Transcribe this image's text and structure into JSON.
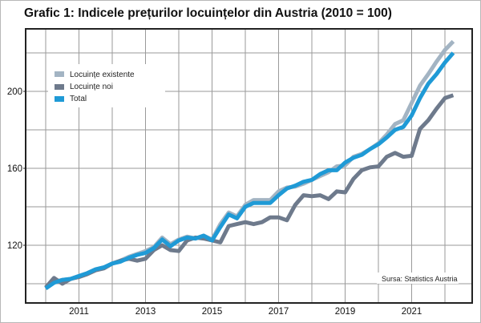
{
  "chart_data": {
    "type": "line",
    "title": "Grafic 1: Indicele prețurilor locuințelor din Austria (2010 = 100)",
    "xlabel": "",
    "ylabel": "",
    "xlim": [
      2009.7,
      2022.8
    ],
    "ylim": [
      90,
      232.5
    ],
    "grid": true,
    "x_ticks": [
      2010,
      2011,
      2012,
      2013,
      2014,
      2015,
      2016,
      2017,
      2018,
      2019,
      2020,
      2021,
      2022
    ],
    "x_tick_labels": [
      "2011",
      "2013",
      "2015",
      "2017",
      "2019",
      "2021"
    ],
    "x_tick_label_values": [
      2011,
      2013,
      2015,
      2017,
      2019,
      2021
    ],
    "y_ticks": [
      100,
      120,
      140,
      160,
      180,
      200,
      220
    ],
    "y_tick_labels": [
      "120",
      "160",
      "200"
    ],
    "y_tick_label_values": [
      120,
      160,
      200
    ],
    "legend_position": "top-left",
    "source": "Sursa: Statistics Austria",
    "x": [
      2010.0,
      2010.25,
      2010.5,
      2010.75,
      2011.0,
      2011.25,
      2011.5,
      2011.75,
      2012.0,
      2012.25,
      2012.5,
      2012.75,
      2013.0,
      2013.25,
      2013.5,
      2013.75,
      2014.0,
      2014.25,
      2014.5,
      2014.75,
      2015.0,
      2015.25,
      2015.5,
      2015.75,
      2016.0,
      2016.25,
      2016.5,
      2016.75,
      2017.0,
      2017.25,
      2017.5,
      2017.75,
      2018.0,
      2018.25,
      2018.5,
      2018.75,
      2019.0,
      2019.25,
      2019.5,
      2019.75,
      2020.0,
      2020.25,
      2020.5,
      2020.75,
      2021.0,
      2021.25,
      2021.5,
      2021.75,
      2022.0,
      2022.25
    ],
    "series": [
      {
        "name": "Locuințe existente",
        "color": "#a3b4c3",
        "values": [
          98,
          101,
          102,
          102.5,
          104,
          105.5,
          107.5,
          108.5,
          110.5,
          112,
          114,
          115.5,
          117,
          119,
          124,
          120.5,
          123,
          124.5,
          123.5,
          125,
          123,
          131,
          137,
          135,
          141,
          143.5,
          143.5,
          143.5,
          148,
          150,
          150.5,
          152,
          154,
          156,
          158,
          161,
          161.5,
          166,
          167.5,
          170,
          173,
          177.5,
          183,
          185,
          194,
          203,
          209,
          215.5,
          221.5,
          226
        ]
      },
      {
        "name": "Locuințe noi",
        "color": "#6e7a8c",
        "values": [
          98,
          103,
          100,
          102.5,
          103.5,
          105,
          107,
          108,
          110.5,
          112,
          113,
          112,
          113,
          117.5,
          120,
          117.5,
          117,
          122.5,
          124,
          123.5,
          122.5,
          121.5,
          130,
          131,
          132,
          131,
          132,
          134.5,
          134.5,
          133,
          141,
          146,
          145.5,
          146,
          144,
          148,
          147.5,
          154.5,
          159,
          160.5,
          161,
          166,
          168,
          166,
          166.5,
          180.5,
          185,
          191,
          196.5,
          198
        ]
      },
      {
        "name": "Total",
        "color": "#1f9ad6",
        "values": [
          97.5,
          100.5,
          102,
          102.5,
          104,
          105.5,
          107.5,
          108.5,
          110.5,
          111.5,
          113.5,
          115,
          116,
          118.5,
          123,
          119.5,
          122.5,
          124,
          123.5,
          125,
          122.5,
          129.5,
          136,
          134,
          140,
          142,
          142,
          142,
          146,
          149.5,
          151,
          153,
          154,
          157,
          159,
          159,
          163,
          165.5,
          167,
          170,
          172.5,
          176,
          180,
          181.5,
          187.5,
          196.5,
          204,
          209,
          215,
          220
        ]
      }
    ]
  }
}
